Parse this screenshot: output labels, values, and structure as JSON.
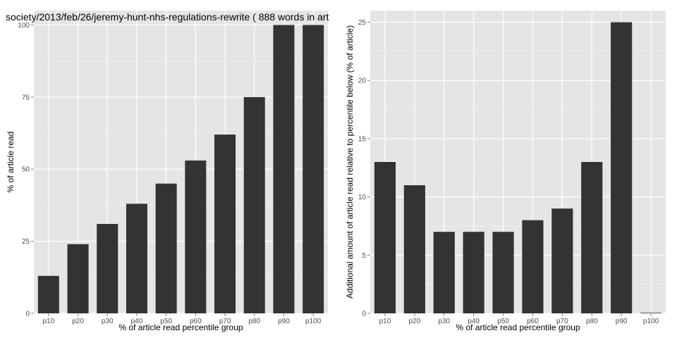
{
  "colors": {
    "panel_bg": "#e5e5e5",
    "grid_major": "#ffffff",
    "grid_minor": "#f2f2f2",
    "bar": "#333333",
    "tick_text": "#4d4d4d"
  },
  "chart_data": [
    {
      "type": "bar",
      "title": "society/2013/feb/26/jeremy-hunt-nhs-regulations-rewrite ( 888 words in art",
      "xlabel": "% of article read percentile group",
      "ylabel": "% of article read",
      "categories": [
        "p10",
        "p20",
        "p30",
        "p40",
        "p50",
        "p60",
        "p70",
        "p80",
        "p90",
        "p100"
      ],
      "values": [
        13,
        24,
        31,
        38,
        45,
        53,
        62,
        75,
        100,
        100
      ],
      "ylim": [
        0,
        105
      ],
      "yticks": [
        0,
        25,
        50,
        75,
        100
      ],
      "grid": true
    },
    {
      "type": "bar",
      "title": "",
      "xlabel": "% of article read percentile group",
      "ylabel": "Additional amount of article read relative to percentile below (% of article)",
      "categories": [
        "p10",
        "p20",
        "p30",
        "p40",
        "p50",
        "p60",
        "p70",
        "p80",
        "p90",
        "p100"
      ],
      "values": [
        13,
        11,
        7,
        7,
        7,
        8,
        9,
        13,
        25,
        0
      ],
      "ylim": [
        0,
        26
      ],
      "yticks": [
        0,
        5,
        10,
        15,
        20,
        25
      ],
      "grid": true
    }
  ]
}
